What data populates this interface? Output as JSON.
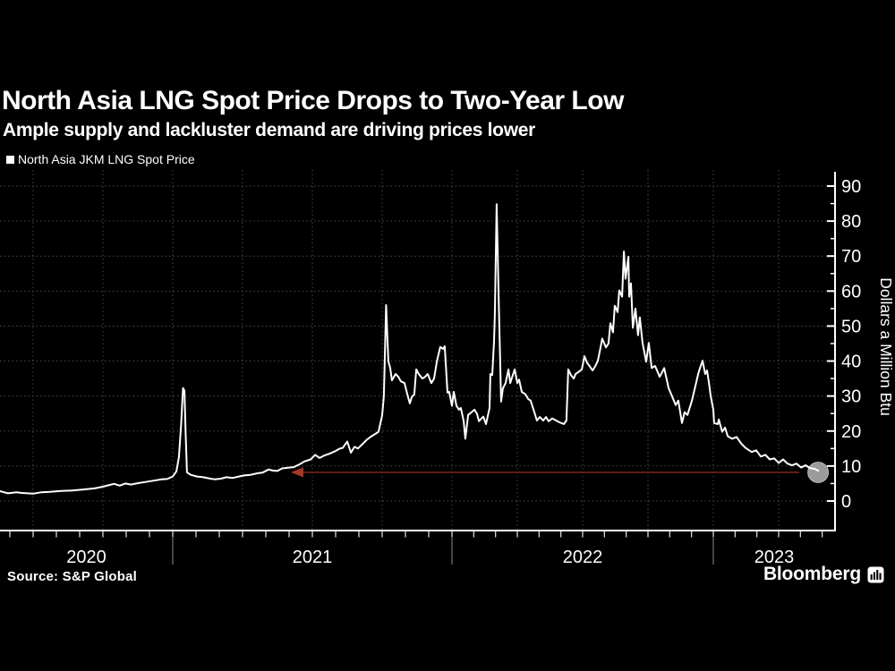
{
  "header": {
    "title": "North Asia LNG Spot Price Drops to Two-Year Low",
    "subtitle": "Ample supply and lackluster demand are driving prices lower"
  },
  "legend": {
    "marker": "white-square",
    "label": "North Asia JKM LNG Spot Price"
  },
  "footer": {
    "source": "Source: S&P Global",
    "brand": "Bloomberg",
    "brand_icon": "bar-chart-icon"
  },
  "colors": {
    "background": "#000000",
    "line": "#ffffff",
    "grid": "#4a4a4a",
    "axis": "#ffffff",
    "annotation_line": "#7a211a",
    "annotation_arrow": "#a63a28",
    "endpoint_fill": "#b0b0b0",
    "year_separator": "#8a8a8a"
  },
  "chart_data": {
    "type": "line",
    "title": "North Asia LNG Spot Price Drops to Two-Year Low",
    "subtitle": "Ample supply and lackluster demand are driving prices lower",
    "xlabel": "",
    "ylabel": "Dollars a Million Btu",
    "y_axis_side": "right",
    "grid": "dotted",
    "x_tick_labels": [
      "2020",
      "2021",
      "2022",
      "2023"
    ],
    "y_ticks": [
      0,
      10,
      20,
      30,
      40,
      50,
      60,
      70,
      80,
      90
    ],
    "y_minor_tick_step": 5,
    "ylim": [
      0,
      94
    ],
    "xlim_decimal_years": [
      2020.381,
      2023.436
    ],
    "vertical_grid_interval_years": 0.25,
    "annotation": {
      "style": "horizontal-line-with-left-arrow",
      "value": 8.2,
      "from_decimal_year": 2021.423,
      "to_decimal_year": 2023.329
    },
    "endpoint_marker": {
      "style": "gray-circle",
      "decimal_year": 2023.401,
      "value": 8.7
    },
    "series": [
      {
        "name": "North Asia JKM LNG Spot Price",
        "color": "#ffffff",
        "points": [
          [
            2020.381,
            2.8
          ],
          [
            2020.41,
            2.2
          ],
          [
            2020.44,
            2.5
          ],
          [
            2020.46,
            2.3
          ],
          [
            2020.5,
            2.1
          ],
          [
            2020.53,
            2.5
          ],
          [
            2020.56,
            2.6
          ],
          [
            2020.6,
            2.9
          ],
          [
            2020.64,
            3.0
          ],
          [
            2020.68,
            3.3
          ],
          [
            2020.72,
            3.6
          ],
          [
            2020.75,
            4.1
          ],
          [
            2020.77,
            4.5
          ],
          [
            2020.79,
            4.9
          ],
          [
            2020.81,
            4.4
          ],
          [
            2020.83,
            5.0
          ],
          [
            2020.85,
            4.7
          ],
          [
            2020.87,
            5.0
          ],
          [
            2020.89,
            5.3
          ],
          [
            2020.93,
            5.8
          ],
          [
            2020.96,
            6.2
          ],
          [
            2020.98,
            6.3
          ],
          [
            2021.0,
            7.0
          ],
          [
            2021.013,
            8.5
          ],
          [
            2021.022,
            12.5
          ],
          [
            2021.03,
            22.0
          ],
          [
            2021.037,
            32.3
          ],
          [
            2021.042,
            31.5
          ],
          [
            2021.046,
            19.5
          ],
          [
            2021.051,
            8.2
          ],
          [
            2021.064,
            7.5
          ],
          [
            2021.087,
            7.0
          ],
          [
            2021.109,
            6.8
          ],
          [
            2021.135,
            6.4
          ],
          [
            2021.151,
            6.2
          ],
          [
            2021.173,
            6.4
          ],
          [
            2021.192,
            6.8
          ],
          [
            2021.215,
            6.6
          ],
          [
            2021.237,
            7.0
          ],
          [
            2021.256,
            7.3
          ],
          [
            2021.279,
            7.5
          ],
          [
            2021.301,
            7.9
          ],
          [
            2021.321,
            8.1
          ],
          [
            2021.343,
            9.0
          ],
          [
            2021.359,
            8.7
          ],
          [
            2021.375,
            8.6
          ],
          [
            2021.391,
            9.3
          ],
          [
            2021.413,
            9.5
          ],
          [
            2021.433,
            9.7
          ],
          [
            2021.455,
            10.5
          ],
          [
            2021.471,
            11.3
          ],
          [
            2021.494,
            11.9
          ],
          [
            2021.51,
            13.2
          ],
          [
            2021.526,
            12.3
          ],
          [
            2021.542,
            13.0
          ],
          [
            2021.561,
            13.5
          ],
          [
            2021.583,
            14.3
          ],
          [
            2021.599,
            15.0
          ],
          [
            2021.609,
            15.2
          ],
          [
            2021.625,
            17.0
          ],
          [
            2021.638,
            13.8
          ],
          [
            2021.651,
            15.5
          ],
          [
            2021.663,
            15.0
          ],
          [
            2021.679,
            16.2
          ],
          [
            2021.695,
            17.5
          ],
          [
            2021.712,
            18.5
          ],
          [
            2021.728,
            19.3
          ],
          [
            2021.737,
            19.8
          ],
          [
            2021.75,
            24.5
          ],
          [
            2021.756,
            30.0
          ],
          [
            2021.764,
            56.0
          ],
          [
            2021.772,
            40.0
          ],
          [
            2021.779,
            38.0
          ],
          [
            2021.785,
            34.5
          ],
          [
            2021.798,
            36.3
          ],
          [
            2021.808,
            35.5
          ],
          [
            2021.817,
            34.2
          ],
          [
            2021.83,
            33.7
          ],
          [
            2021.84,
            30.5
          ],
          [
            2021.849,
            27.9
          ],
          [
            2021.856,
            29.7
          ],
          [
            2021.865,
            30.5
          ],
          [
            2021.872,
            37.6
          ],
          [
            2021.881,
            36.3
          ],
          [
            2021.894,
            35.0
          ],
          [
            2021.904,
            35.5
          ],
          [
            2021.913,
            36.3
          ],
          [
            2021.926,
            33.7
          ],
          [
            2021.936,
            35.0
          ],
          [
            2021.946,
            40.0
          ],
          [
            2021.958,
            44.0
          ],
          [
            2021.968,
            43.5
          ],
          [
            2021.974,
            44.2
          ],
          [
            2021.984,
            31.0
          ],
          [
            2021.99,
            31.2
          ],
          [
            2022.0,
            27.2
          ],
          [
            2022.007,
            31.2
          ],
          [
            2022.017,
            27.2
          ],
          [
            2022.027,
            26.1
          ],
          [
            2022.034,
            26.6
          ],
          [
            2022.045,
            22.8
          ],
          [
            2022.051,
            17.8
          ],
          [
            2022.062,
            24.6
          ],
          [
            2022.075,
            25.4
          ],
          [
            2022.086,
            26.1
          ],
          [
            2022.096,
            24.9
          ],
          [
            2022.103,
            22.8
          ],
          [
            2022.113,
            23.6
          ],
          [
            2022.12,
            24.1
          ],
          [
            2022.13,
            22.0
          ],
          [
            2022.144,
            26.6
          ],
          [
            2022.147,
            36.3
          ],
          [
            2022.154,
            36.0
          ],
          [
            2022.161,
            45.7
          ],
          [
            2022.164,
            53.3
          ],
          [
            2022.171,
            84.8
          ],
          [
            2022.178,
            60.0
          ],
          [
            2022.188,
            28.4
          ],
          [
            2022.195,
            32.2
          ],
          [
            2022.205,
            33.7
          ],
          [
            2022.216,
            37.6
          ],
          [
            2022.223,
            33.7
          ],
          [
            2022.233,
            36.0
          ],
          [
            2022.24,
            37.6
          ],
          [
            2022.25,
            33.7
          ],
          [
            2022.257,
            34.7
          ],
          [
            2022.267,
            31.2
          ],
          [
            2022.281,
            30.5
          ],
          [
            2022.291,
            29.2
          ],
          [
            2022.301,
            28.7
          ],
          [
            2022.315,
            25.4
          ],
          [
            2022.325,
            23.0
          ],
          [
            2022.336,
            24.0
          ],
          [
            2022.349,
            23.0
          ],
          [
            2022.36,
            24.0
          ],
          [
            2022.37,
            22.8
          ],
          [
            2022.384,
            23.6
          ],
          [
            2022.394,
            23.2
          ],
          [
            2022.411,
            22.5
          ],
          [
            2022.428,
            22.0
          ],
          [
            2022.438,
            23.0
          ],
          [
            2022.445,
            37.6
          ],
          [
            2022.455,
            36.0
          ],
          [
            2022.466,
            35.0
          ],
          [
            2022.473,
            36.3
          ],
          [
            2022.483,
            36.8
          ],
          [
            2022.497,
            37.6
          ],
          [
            2022.507,
            41.4
          ],
          [
            2022.517,
            39.5
          ],
          [
            2022.524,
            38.8
          ],
          [
            2022.538,
            37.3
          ],
          [
            2022.548,
            38.5
          ],
          [
            2022.558,
            40.0
          ],
          [
            2022.565,
            42.6
          ],
          [
            2022.575,
            46.4
          ],
          [
            2022.589,
            43.9
          ],
          [
            2022.599,
            45.0
          ],
          [
            2022.606,
            50.8
          ],
          [
            2022.616,
            48.2
          ],
          [
            2022.623,
            55.8
          ],
          [
            2022.634,
            54.0
          ],
          [
            2022.64,
            60.2
          ],
          [
            2022.651,
            58.4
          ],
          [
            2022.658,
            71.3
          ],
          [
            2022.664,
            63.5
          ],
          [
            2022.675,
            69.8
          ],
          [
            2022.678,
            58.4
          ],
          [
            2022.685,
            62.2
          ],
          [
            2022.692,
            49.5
          ],
          [
            2022.702,
            55.0
          ],
          [
            2022.712,
            47.4
          ],
          [
            2022.719,
            52.5
          ],
          [
            2022.729,
            45.2
          ],
          [
            2022.743,
            39.8
          ],
          [
            2022.753,
            45.2
          ],
          [
            2022.764,
            38.0
          ],
          [
            2022.777,
            38.6
          ],
          [
            2022.795,
            35.5
          ],
          [
            2022.812,
            38.0
          ],
          [
            2022.829,
            32.2
          ],
          [
            2022.839,
            30.5
          ],
          [
            2022.856,
            27.4
          ],
          [
            2022.866,
            28.7
          ],
          [
            2022.88,
            22.3
          ],
          [
            2022.89,
            25.4
          ],
          [
            2022.901,
            24.6
          ],
          [
            2022.918,
            28.7
          ],
          [
            2022.932,
            33.0
          ],
          [
            2022.942,
            36.3
          ],
          [
            2022.949,
            38.0
          ],
          [
            2022.959,
            40.1
          ],
          [
            2022.969,
            36.3
          ],
          [
            2022.976,
            37.3
          ],
          [
            2022.983,
            34.0
          ],
          [
            2022.99,
            30.0
          ],
          [
            2023.0,
            26.1
          ],
          [
            2023.003,
            22.3
          ],
          [
            2023.017,
            22.0
          ],
          [
            2023.021,
            23.3
          ],
          [
            2023.034,
            19.8
          ],
          [
            2023.045,
            21.0
          ],
          [
            2023.055,
            18.5
          ],
          [
            2023.072,
            17.8
          ],
          [
            2023.089,
            18.3
          ],
          [
            2023.106,
            16.5
          ],
          [
            2023.123,
            15.2
          ],
          [
            2023.147,
            14.0
          ],
          [
            2023.164,
            14.5
          ],
          [
            2023.182,
            12.7
          ],
          [
            2023.199,
            13.2
          ],
          [
            2023.216,
            11.9
          ],
          [
            2023.233,
            12.2
          ],
          [
            2023.25,
            10.9
          ],
          [
            2023.267,
            11.9
          ],
          [
            2023.284,
            10.7
          ],
          [
            2023.301,
            10.2
          ],
          [
            2023.318,
            10.7
          ],
          [
            2023.336,
            9.6
          ],
          [
            2023.353,
            10.2
          ],
          [
            2023.37,
            9.4
          ],
          [
            2023.387,
            9.2
          ],
          [
            2023.401,
            8.7
          ]
        ]
      }
    ]
  }
}
